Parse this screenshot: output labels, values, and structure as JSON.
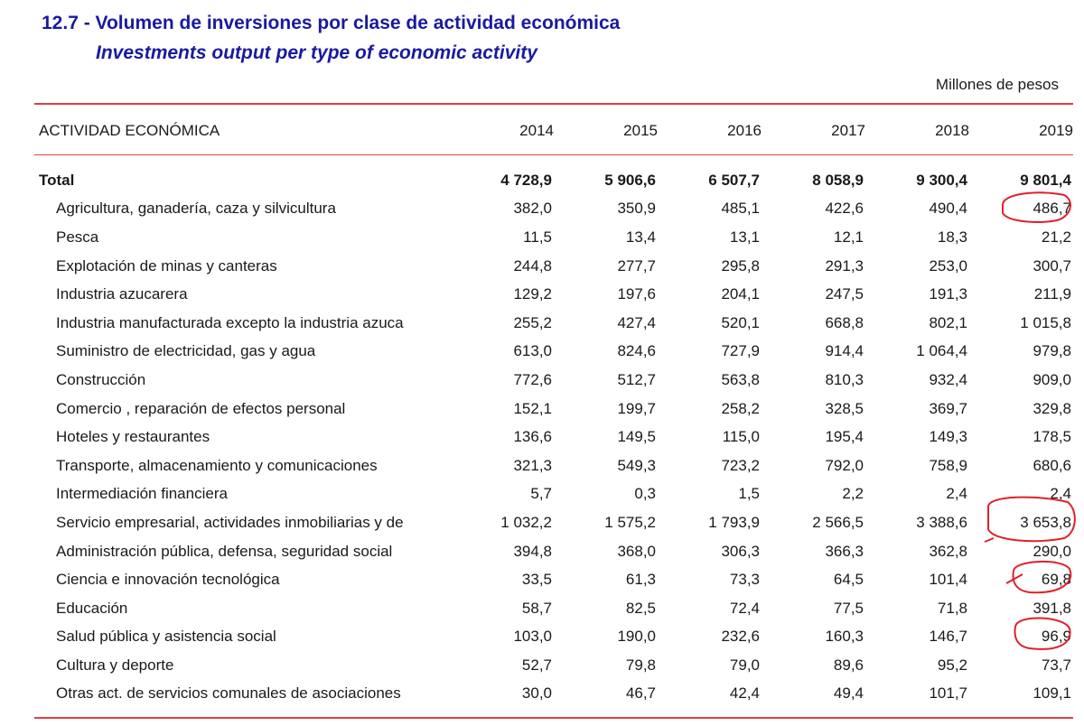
{
  "title_es": "12.7 - Volumen de inversiones por clase de actividad económica",
  "title_en": "Investments output per type of economic activity",
  "unit": "Millones de pesos",
  "header": {
    "label": "ACTIVIDAD ECONÓMICA",
    "years": [
      "2014",
      "2015",
      "2016",
      "2017",
      "2018",
      "2019"
    ]
  },
  "rows": [
    {
      "label": "Total",
      "values": [
        "4 728,9",
        "5 906,6",
        "6 507,7",
        "8 058,9",
        "9 300,4",
        "9 801,4"
      ]
    },
    {
      "label": "Agricultura, ganadería, caza y silvicultura",
      "values": [
        "382,0",
        "350,9",
        "485,1",
        "422,6",
        "490,4",
        "486,7"
      ]
    },
    {
      "label": "Pesca",
      "values": [
        "11,5",
        "13,4",
        "13,1",
        "12,1",
        "18,3",
        "21,2"
      ]
    },
    {
      "label": "Explotación de minas y canteras",
      "values": [
        "244,8",
        "277,7",
        "295,8",
        "291,3",
        "253,0",
        "300,7"
      ]
    },
    {
      "label": "Industria azucarera",
      "values": [
        "129,2",
        "197,6",
        "204,1",
        "247,5",
        "191,3",
        "211,9"
      ]
    },
    {
      "label": "Industria manufacturada excepto la industria azuca",
      "values": [
        "255,2",
        "427,4",
        "520,1",
        "668,8",
        "802,1",
        "1 015,8"
      ]
    },
    {
      "label": "Suministro de electricidad, gas y agua",
      "values": [
        "613,0",
        "824,6",
        "727,9",
        "914,4",
        "1 064,4",
        "979,8"
      ]
    },
    {
      "label": "Construcción",
      "values": [
        "772,6",
        "512,7",
        "563,8",
        "810,3",
        "932,4",
        "909,0"
      ]
    },
    {
      "label": "Comercio , reparación de efectos personal",
      "values": [
        "152,1",
        "199,7",
        "258,2",
        "328,5",
        "369,7",
        "329,8"
      ]
    },
    {
      "label": "Hoteles y restaurantes",
      "values": [
        "136,6",
        "149,5",
        "115,0",
        "195,4",
        "149,3",
        "178,5"
      ]
    },
    {
      "label": "Transporte, almacenamiento y comunicaciones",
      "values": [
        "321,3",
        "549,3",
        "723,2",
        "792,0",
        "758,9",
        "680,6"
      ]
    },
    {
      "label": "Intermediación financiera",
      "values": [
        "5,7",
        "0,3",
        "1,5",
        "2,2",
        "2,4",
        "2,4"
      ]
    },
    {
      "label": "Servicio empresarial, actividades inmobiliarias y de",
      "values": [
        "1 032,2",
        "1 575,2",
        "1 793,9",
        "2 566,5",
        "3 388,6",
        "3 653,8"
      ]
    },
    {
      "label": "Administración pública, defensa, seguridad social",
      "values": [
        "394,8",
        "368,0",
        "306,3",
        "366,3",
        "362,8",
        "290,0"
      ]
    },
    {
      "label": "Ciencia e innovación tecnológica",
      "values": [
        "33,5",
        "61,3",
        "73,3",
        "64,5",
        "101,4",
        "69,8"
      ]
    },
    {
      "label": "Educación",
      "values": [
        "58,7",
        "82,5",
        "72,4",
        "77,5",
        "71,8",
        "391,8"
      ]
    },
    {
      "label": "Salud pública y asistencia social",
      "values": [
        "103,0",
        "190,0",
        "232,6",
        "160,3",
        "146,7",
        "96,9"
      ]
    },
    {
      "label": "Cultura y deporte",
      "values": [
        "52,7",
        "79,8",
        "79,0",
        "89,6",
        "95,2",
        "73,7"
      ]
    },
    {
      "label": "Otras act. de servicios comunales de asociaciones",
      "values": [
        "30,0",
        "46,7",
        "42,4",
        "49,4",
        "101,7",
        "109,1"
      ]
    }
  ],
  "colors": {
    "title": "#1a1aa0",
    "rule": "#e04040",
    "annotation": "#e0202a"
  }
}
